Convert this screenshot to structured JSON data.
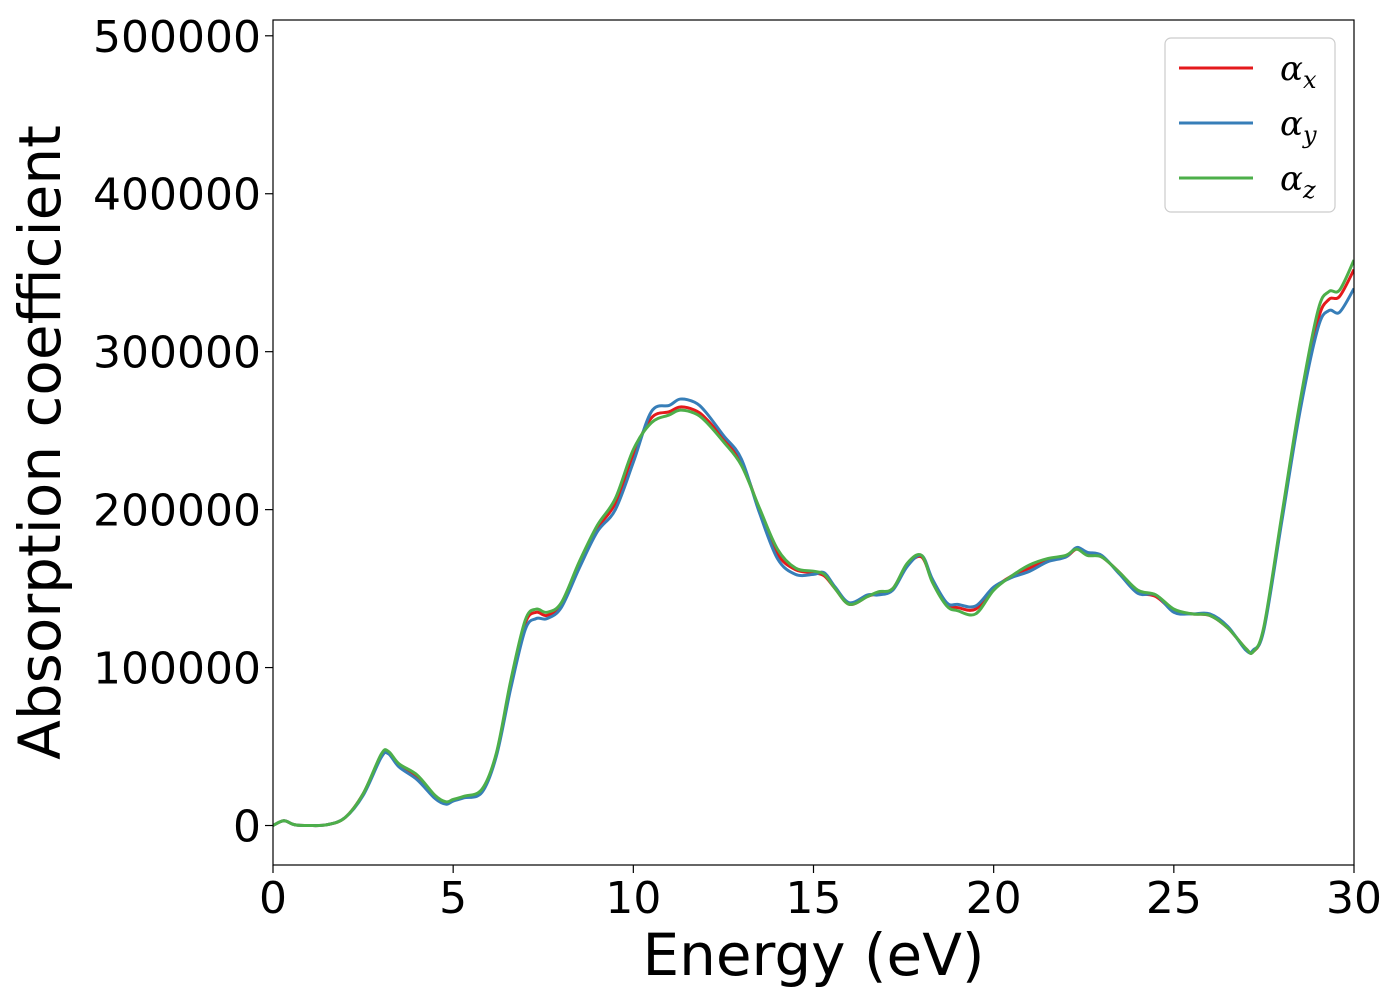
{
  "chart_data": {
    "type": "line",
    "title": "",
    "xlabel": "Energy (eV)",
    "ylabel": "Absorption coefficient",
    "xlim": [
      0,
      30
    ],
    "ylim": [
      -25000,
      510000
    ],
    "xticks": [
      0,
      5,
      10,
      15,
      20,
      25,
      30
    ],
    "yticks": [
      0,
      100000,
      200000,
      300000,
      400000,
      500000
    ],
    "xtick_labels": [
      "0",
      "5",
      "10",
      "15",
      "20",
      "25",
      "30"
    ],
    "ytick_labels": [
      "0",
      "100000",
      "200000",
      "300000",
      "400000",
      "500000"
    ],
    "grid": false,
    "legend_position": "top-right",
    "series": [
      {
        "name": "α_x",
        "symbol": "α",
        "subscript": "x",
        "color": "#e41a1c",
        "x": [
          0,
          0.3,
          0.6,
          1,
          1.5,
          2,
          2.5,
          3,
          3.2,
          3.5,
          4,
          4.5,
          4.8,
          5,
          5.3,
          5.8,
          6.2,
          6.6,
          7,
          7.3,
          7.6,
          8,
          8.5,
          9,
          9.5,
          10,
          10.5,
          11,
          11.3,
          11.7,
          12,
          12.5,
          13,
          13.5,
          14,
          14.5,
          15,
          15.3,
          15.6,
          16,
          16.5,
          16.8,
          17.2,
          17.6,
          18,
          18.3,
          18.7,
          19,
          19.5,
          20,
          20.5,
          21,
          21.5,
          22,
          22.3,
          22.6,
          23,
          23.5,
          24,
          24.5,
          25,
          25.5,
          26,
          26.5,
          27,
          27.2,
          27.5,
          28,
          28.5,
          29,
          29.3,
          29.6,
          30
        ],
        "values": [
          0,
          3000,
          500,
          0,
          500,
          5000,
          20000,
          44000,
          46000,
          38000,
          30000,
          18000,
          14000,
          16000,
          18000,
          22000,
          45000,
          90000,
          128000,
          135000,
          133000,
          140000,
          165000,
          188000,
          204000,
          235000,
          258000,
          262000,
          265000,
          263000,
          258000,
          245000,
          230000,
          200000,
          172000,
          162000,
          160000,
          158000,
          150000,
          140000,
          145000,
          147000,
          150000,
          165000,
          170000,
          155000,
          140000,
          138000,
          137000,
          150000,
          158000,
          163000,
          168000,
          170000,
          175000,
          172000,
          170000,
          160000,
          148000,
          145000,
          136000,
          134000,
          133000,
          125000,
          112000,
          110000,
          125000,
          195000,
          265000,
          320000,
          333000,
          335000,
          352000
        ]
      },
      {
        "name": "α_y",
        "symbol": "α",
        "subscript": "y",
        "color": "#377eb8",
        "x": [
          0,
          0.3,
          0.6,
          1,
          1.5,
          2,
          2.5,
          3,
          3.2,
          3.5,
          4,
          4.5,
          4.8,
          5,
          5.3,
          5.8,
          6.2,
          6.6,
          7,
          7.3,
          7.6,
          8,
          8.5,
          9,
          9.5,
          10,
          10.5,
          11,
          11.3,
          11.7,
          12,
          12.5,
          13,
          13.5,
          14,
          14.5,
          15,
          15.3,
          15.6,
          16,
          16.5,
          16.8,
          17.2,
          17.6,
          18,
          18.3,
          18.7,
          19,
          19.5,
          20,
          20.5,
          21,
          21.5,
          22,
          22.3,
          22.6,
          23,
          23.5,
          24,
          24.5,
          25,
          25.5,
          26,
          26.5,
          27,
          27.2,
          27.5,
          28,
          28.5,
          29,
          29.3,
          29.6,
          30
        ],
        "values": [
          0,
          3000,
          500,
          0,
          500,
          5000,
          19000,
          43000,
          45500,
          37000,
          29000,
          17000,
          13500,
          15500,
          17500,
          21000,
          44000,
          87000,
          124000,
          131000,
          131000,
          138000,
          163000,
          186000,
          200000,
          230000,
          262000,
          266000,
          270000,
          268000,
          262000,
          247000,
          232000,
          198000,
          169000,
          159000,
          159000,
          160000,
          151000,
          141000,
          146000,
          146000,
          149000,
          164000,
          171000,
          156000,
          141000,
          140000,
          139000,
          151000,
          157000,
          161000,
          167000,
          170000,
          176000,
          173000,
          171000,
          159000,
          147000,
          146000,
          135000,
          134000,
          134000,
          126000,
          111000,
          111000,
          124000,
          193000,
          262000,
          315000,
          326000,
          325000,
          340000
        ]
      },
      {
        "name": "α_z",
        "symbol": "α",
        "subscript": "z",
        "color": "#4daf4a",
        "x": [
          0,
          0.3,
          0.6,
          1,
          1.5,
          2,
          2.5,
          3,
          3.2,
          3.5,
          4,
          4.5,
          4.8,
          5,
          5.3,
          5.8,
          6.2,
          6.6,
          7,
          7.3,
          7.6,
          8,
          8.5,
          9,
          9.5,
          10,
          10.5,
          11,
          11.3,
          11.7,
          12,
          12.5,
          13,
          13.5,
          14,
          14.5,
          15,
          15.3,
          15.6,
          16,
          16.5,
          16.8,
          17.2,
          17.6,
          18,
          18.3,
          18.7,
          19,
          19.5,
          20,
          20.5,
          21,
          21.5,
          22,
          22.3,
          22.6,
          23,
          23.5,
          24,
          24.5,
          25,
          25.5,
          26,
          26.5,
          27,
          27.2,
          27.5,
          28,
          28.5,
          29,
          29.3,
          29.6,
          30
        ],
        "values": [
          0,
          3000,
          500,
          0,
          500,
          5000,
          20000,
          45000,
          47000,
          39000,
          32000,
          19000,
          15000,
          16500,
          18500,
          23000,
          46000,
          92000,
          130000,
          137000,
          135000,
          141000,
          167000,
          190000,
          207000,
          238000,
          255000,
          260000,
          263000,
          261000,
          256000,
          243000,
          228000,
          201000,
          175000,
          163000,
          161000,
          159000,
          150000,
          140000,
          145000,
          148000,
          150000,
          166000,
          171000,
          154000,
          139000,
          136000,
          134000,
          149000,
          158000,
          165000,
          169000,
          171000,
          175000,
          171000,
          170000,
          160000,
          149000,
          146000,
          137000,
          134000,
          133000,
          125000,
          112000,
          110000,
          126000,
          197000,
          268000,
          326000,
          338000,
          339000,
          358000
        ]
      }
    ]
  }
}
